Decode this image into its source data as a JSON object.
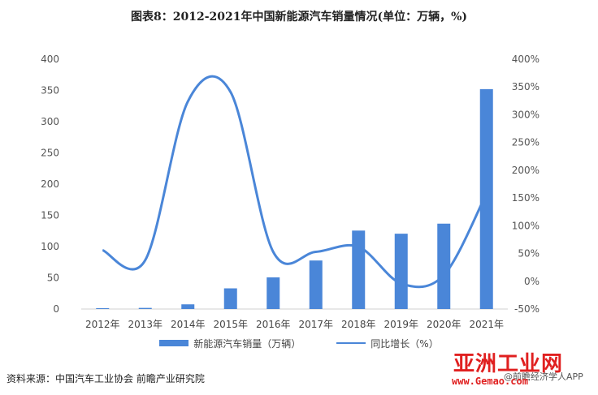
{
  "title": "图表8：2012-2021年中国新能源汽车销量情况(单位：万辆，%)",
  "source": "资料来源：中国汽车工业协会 前瞻产业研究院",
  "watermark": {
    "site_name": "亚洲工业网",
    "site_url": "www.Gemao.com",
    "app_text": "@前瞻经济学人APP"
  },
  "colors": {
    "bar": "#4a86d8",
    "line": "#4a86d8",
    "axis": "#d0d0d0"
  },
  "chart_data": {
    "type": "bar",
    "title": "图表8：2012-2021年中国新能源汽车销量情况(单位：万辆，%)",
    "categories": [
      "2012年",
      "2013年",
      "2014年",
      "2015年",
      "2016年",
      "2017年",
      "2018年",
      "2019年",
      "2020年",
      "2021年"
    ],
    "series": [
      {
        "name": "新能源汽车销量（万辆）",
        "type": "bar",
        "axis": "left",
        "values": [
          1.3,
          1.8,
          7.5,
          33.1,
          50.7,
          77.7,
          125.6,
          120.6,
          136.7,
          352.1
        ]
      },
      {
        "name": "同比增长（%）",
        "type": "line",
        "axis": "right",
        "values": [
          56,
          38,
          324,
          341,
          53,
          53,
          62,
          -4,
          11,
          158
        ]
      }
    ],
    "y_left": {
      "min": 0,
      "max": 400,
      "ticks": [
        0,
        50,
        100,
        150,
        200,
        250,
        300,
        350,
        400
      ]
    },
    "y_right": {
      "min": -50,
      "max": 400,
      "ticks": [
        "-50%",
        "0%",
        "50%",
        "100%",
        "150%",
        "200%",
        "250%",
        "300%",
        "350%",
        "400%"
      ]
    },
    "grid": false,
    "legend_position": "bottom"
  }
}
